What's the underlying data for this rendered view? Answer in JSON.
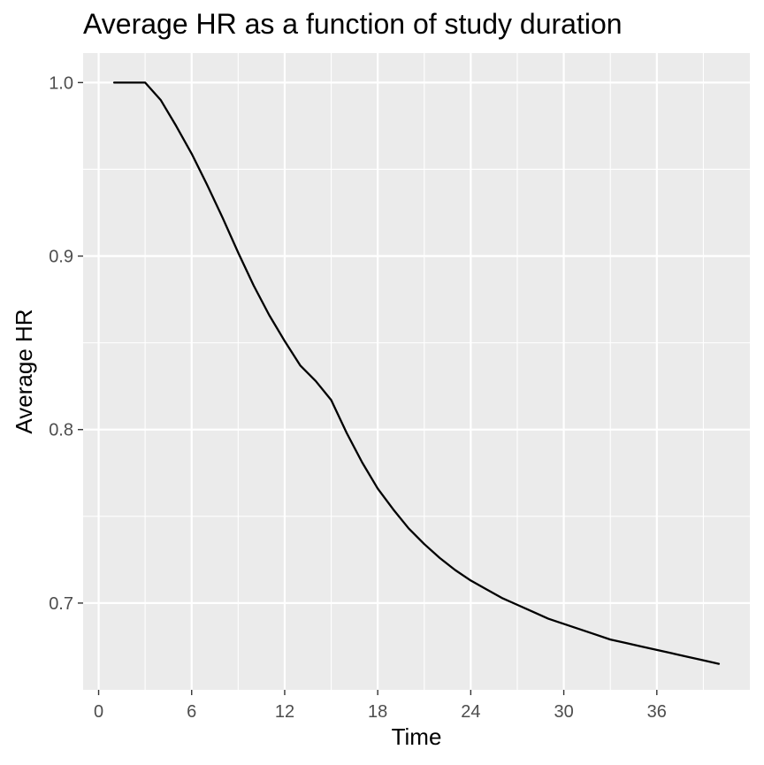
{
  "chart_data": {
    "type": "line",
    "title": "Average HR as a function of study duration",
    "xlabel": "Time",
    "ylabel": "Average HR",
    "xlim": [
      -1,
      42
    ],
    "ylim": [
      0.65,
      1.017
    ],
    "x_major_ticks": [
      0,
      6,
      12,
      18,
      24,
      30,
      36
    ],
    "x_minor_ticks": [
      3,
      9,
      15,
      21,
      27,
      33,
      39
    ],
    "y_major_ticks": [
      0.7,
      0.8,
      0.9,
      1.0
    ],
    "y_minor_ticks": [
      0.75,
      0.85,
      0.95
    ],
    "x_tick_labels": [
      "0",
      "6",
      "12",
      "18",
      "24",
      "30",
      "36"
    ],
    "y_tick_labels": [
      "0.7",
      "0.8",
      "0.9",
      "1.0"
    ],
    "grid": true,
    "legend": "none",
    "colors": {
      "panel_background": "#ebebeb",
      "grid": "#ffffff",
      "line": "#000000",
      "tick_label": "#4d4d4d"
    },
    "series": [
      {
        "color": "#000000",
        "x": [
          1,
          2,
          3,
          4,
          5,
          6,
          7,
          8,
          9,
          10,
          11,
          12,
          13,
          14,
          15,
          16,
          17,
          18,
          19,
          20,
          21,
          22,
          23,
          24,
          25,
          26,
          27,
          28,
          29,
          30,
          31,
          32,
          33,
          34,
          35,
          36,
          37,
          38,
          39,
          40
        ],
        "values": [
          1.0,
          1.0,
          1.0,
          0.99,
          0.975,
          0.959,
          0.941,
          0.922,
          0.902,
          0.883,
          0.866,
          0.851,
          0.837,
          0.828,
          0.817,
          0.798,
          0.781,
          0.766,
          0.754,
          0.743,
          0.734,
          0.726,
          0.719,
          0.713,
          0.708,
          0.703,
          0.699,
          0.695,
          0.691,
          0.688,
          0.685,
          0.682,
          0.679,
          0.677,
          0.675,
          0.673,
          0.671,
          0.669,
          0.667,
          0.665
        ]
      }
    ]
  }
}
